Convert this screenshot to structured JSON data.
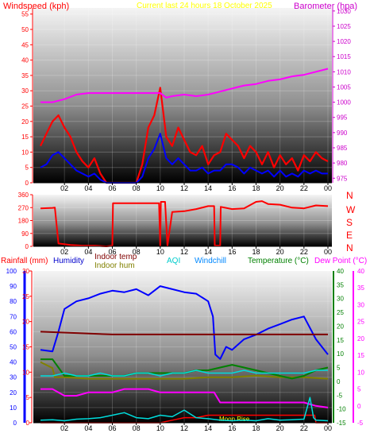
{
  "panel1": {
    "title": "Current last 24 hours 18 October 2025",
    "left_label": "Windspeed (kph)",
    "right_label": "Barometer (hpa)"
  },
  "panel2": {
    "direction_labels": [
      "N",
      "W",
      "S",
      "E",
      "N"
    ]
  },
  "panel3": {
    "labels": {
      "rainfall": "Rainfall (mm)",
      "humidity": "Humidity",
      "indoor_temp": "Indoor temp",
      "indoor_hum": "Indoor hum",
      "aqi": "AQI",
      "windchill": "Windchill",
      "temperature": "Temperature (°C)",
      "dewpoint": "Dew Point (°C)"
    },
    "moon_label": "Moon Rise"
  },
  "colors": {
    "wind_gust": "#ff0000",
    "wind_avg": "#0000ff",
    "barometer": "#ff00ff",
    "direction": "#ff0000",
    "rain_axis": "#ff0000",
    "humidity": "#0000ff",
    "indoor_temp": "#800000",
    "indoor_hum": "#808000",
    "aqi": "#00dddd",
    "windchill": "#00aaff",
    "temperature": "#008000",
    "dewpoint": "#ff00ff",
    "barometer_axis": "#cc00cc"
  },
  "chart_data": [
    {
      "type": "line",
      "id": "wind-baro",
      "title": "Current last 24 hours 18 October 2025",
      "x_ticks": [
        "02",
        "04",
        "06",
        "08",
        "10",
        "12",
        "14",
        "16",
        "18",
        "20",
        "22",
        "00"
      ],
      "y_left": {
        "label": "Windspeed (kph)",
        "ticks": [
          0,
          5,
          10,
          15,
          20,
          25,
          30,
          35,
          40,
          45,
          50,
          55
        ],
        "range": [
          0,
          57
        ]
      },
      "y_right": {
        "label": "Barometer (hpa)",
        "ticks": [
          975,
          980,
          985,
          990,
          995,
          1000,
          1005,
          1010,
          1015,
          1020,
          1025,
          1030
        ],
        "range": [
          973.5,
          1031
        ]
      },
      "series": [
        {
          "name": "Windspeed (kph)",
          "axis": "left",
          "style": "gust",
          "x": [
            0.0,
            0.5,
            1.0,
            1.5,
            2.0,
            2.5,
            3.0,
            3.5,
            4.0,
            4.5,
            5.0,
            5.5,
            6.0,
            6.5,
            7.0,
            7.5,
            8.0,
            8.5,
            9.0,
            9.5,
            10.0,
            10.5,
            11.0,
            11.5,
            12.0,
            12.5,
            13.0,
            13.5,
            14.0,
            14.5,
            15.0,
            15.5,
            16.0,
            16.5,
            17.0,
            17.5,
            18.0,
            18.5,
            19.0,
            19.5,
            20.0,
            20.5,
            21.0,
            21.5,
            22.0,
            22.5,
            23.0,
            23.5,
            24.0
          ],
          "values": [
            12,
            16,
            20,
            22,
            18,
            15,
            10,
            7,
            5,
            8,
            3,
            0,
            0,
            0,
            0,
            0,
            0,
            6,
            18,
            22,
            31,
            15,
            12,
            18,
            14,
            10,
            9,
            12,
            6,
            9,
            10,
            16,
            14,
            12,
            8,
            12,
            10,
            6,
            10,
            5,
            9,
            6,
            8,
            4,
            9,
            7,
            10,
            8,
            7
          ]
        },
        {
          "name": "Wind average",
          "axis": "left",
          "style": "avg",
          "x": [
            0.0,
            0.5,
            1.0,
            1.5,
            2.0,
            2.5,
            3.0,
            3.5,
            4.0,
            4.5,
            5.0,
            5.5,
            6.0,
            6.5,
            7.0,
            7.5,
            8.0,
            8.5,
            9.0,
            9.5,
            10.0,
            10.5,
            11.0,
            11.5,
            12.0,
            12.5,
            13.0,
            13.5,
            14.0,
            14.5,
            15.0,
            15.5,
            16.0,
            16.5,
            17.0,
            17.5,
            18.0,
            18.5,
            19.0,
            19.5,
            20.0,
            20.5,
            21.0,
            21.5,
            22.0,
            22.5,
            23.0,
            23.5,
            24.0
          ],
          "values": [
            5,
            6,
            9,
            10,
            8,
            6,
            4,
            3,
            2,
            3,
            1,
            0,
            0,
            0,
            0,
            0,
            0,
            2,
            8,
            11,
            16,
            8,
            6,
            8,
            6,
            4,
            4,
            5,
            3,
            4,
            4,
            6,
            6,
            5,
            3,
            5,
            4,
            3,
            4,
            2,
            4,
            2,
            3,
            2,
            4,
            3,
            4,
            3,
            3
          ]
        },
        {
          "name": "Barometer (hpa)",
          "axis": "right",
          "style": "baro",
          "x": [
            0,
            1,
            2,
            3,
            4,
            5,
            6,
            7,
            8,
            9,
            10,
            10.5,
            11,
            12,
            13,
            14,
            15,
            16,
            17,
            18,
            19,
            20,
            21,
            22,
            23,
            24
          ],
          "values": [
            1000,
            1000,
            1001,
            1002.5,
            1003,
            1003,
            1003,
            1003,
            1003,
            1003,
            1003,
            1001.5,
            1002,
            1002.5,
            1002,
            1002.5,
            1003.5,
            1004.5,
            1005.5,
            1006,
            1007,
            1007.5,
            1008.5,
            1009,
            1010,
            1011
          ]
        }
      ]
    },
    {
      "type": "line",
      "id": "wind-direction",
      "x_ticks": [
        "02",
        "04",
        "06",
        "08",
        "10",
        "12",
        "14",
        "16",
        "18",
        "20",
        "22",
        "00"
      ],
      "y_left": {
        "ticks": [
          0,
          90,
          180,
          270,
          360
        ],
        "range": [
          0,
          360
        ]
      },
      "series": [
        {
          "name": "Wind direction",
          "x": [
            0,
            1,
            1.2,
            1.5,
            2.5,
            3.5,
            4.5,
            5.5,
            6.0,
            6.05,
            7,
            8,
            9,
            9.9,
            10.0,
            10.05,
            10.4,
            10.6,
            11,
            12,
            13,
            14,
            14.5,
            14.55,
            15,
            15.05,
            16,
            17,
            18,
            18.5,
            19,
            20,
            21,
            22,
            23,
            24
          ],
          "values": [
            265,
            268,
            270,
            20,
            10,
            5,
            5,
            0,
            5,
            300,
            300,
            300,
            300,
            300,
            5,
            310,
            310,
            5,
            240,
            245,
            260,
            280,
            280,
            5,
            5,
            275,
            260,
            265,
            310,
            315,
            295,
            290,
            270,
            265,
            285,
            280
          ]
        }
      ]
    },
    {
      "type": "line",
      "id": "temp-hum-rain",
      "x_ticks": [
        "02",
        "04",
        "06",
        "08",
        "10",
        "12",
        "14",
        "16",
        "18",
        "20",
        "22",
        "00"
      ],
      "y_humidity": {
        "label": "Humidity",
        "ticks": [
          0,
          10,
          20,
          30,
          40,
          50,
          60,
          70,
          80,
          90,
          100
        ],
        "range": [
          0,
          100
        ]
      },
      "y_rain": {
        "label": "Rainfall (mm)",
        "ticks": [
          0,
          5,
          10,
          15,
          20,
          25,
          30
        ],
        "range": [
          0,
          30
        ]
      },
      "y_temp": {
        "label": "Temperature (°C)",
        "ticks": [
          -15,
          -10,
          -5,
          0,
          5,
          10,
          15,
          20,
          25,
          30,
          35,
          40
        ],
        "range": [
          -15,
          40
        ]
      },
      "y_dew": {
        "label": "Dew Point (°C)",
        "ticks": [
          -5,
          0,
          5,
          10,
          15,
          20,
          25,
          30,
          35,
          40
        ],
        "range": [
          -5,
          40
        ]
      },
      "series": [
        {
          "name": "Humidity",
          "axis": "humidity",
          "x": [
            0,
            1,
            1.5,
            2,
            3,
            4,
            5,
            6,
            7,
            8,
            9,
            10,
            11,
            12,
            13,
            14,
            14.4,
            14.6,
            15,
            15.5,
            16,
            17,
            18,
            19,
            20,
            21,
            22,
            23,
            24
          ],
          "values": [
            48,
            47,
            60,
            75,
            80,
            82,
            85,
            87,
            86,
            88,
            84,
            90,
            88,
            86,
            85,
            80,
            70,
            45,
            42,
            50,
            48,
            55,
            58,
            62,
            65,
            68,
            70,
            55,
            45
          ]
        },
        {
          "name": "Indoor temp",
          "axis": "temp",
          "x": [
            0,
            3,
            6,
            9,
            12,
            15,
            18,
            21,
            24
          ],
          "values": [
            18,
            17.5,
            17,
            17,
            17,
            17,
            17,
            17,
            17
          ]
        },
        {
          "name": "Indoor hum",
          "axis": "humidity",
          "x": [
            0,
            1,
            1.2,
            2,
            4,
            6,
            8,
            10,
            12,
            14,
            16,
            18,
            20,
            22,
            24
          ],
          "values": [
            40,
            36,
            30,
            30,
            29,
            29,
            29,
            29,
            29,
            30,
            30,
            31,
            30,
            30,
            29
          ]
        },
        {
          "name": "Temperature (°C)",
          "axis": "temp",
          "x": [
            0,
            1,
            2,
            3,
            4,
            5,
            6,
            7,
            8,
            9,
            10,
            11,
            12,
            13,
            14,
            15,
            16,
            17,
            18,
            19,
            20,
            21,
            22,
            23,
            24
          ],
          "values": [
            8,
            8,
            2,
            2,
            2,
            2,
            2,
            2,
            3,
            3,
            3,
            3,
            3,
            4,
            4,
            5,
            6,
            5,
            4,
            3,
            2,
            1,
            2,
            4,
            5
          ]
        },
        {
          "name": "AQI",
          "axis": "temp",
          "x": [
            0,
            1,
            2,
            3,
            4,
            5,
            6,
            7,
            8,
            9,
            10,
            11,
            12,
            13,
            14,
            15,
            16,
            17,
            18,
            19,
            20,
            21,
            22,
            23,
            24
          ],
          "values": [
            2,
            2,
            3,
            2,
            2,
            3,
            2,
            2,
            3,
            3,
            2,
            3,
            3,
            4,
            3,
            3,
            3,
            4,
            3,
            3,
            3,
            3,
            3,
            4,
            4
          ]
        },
        {
          "name": "Dew Point (°C)",
          "axis": "dew",
          "x": [
            0,
            1,
            2,
            3,
            4,
            5,
            6,
            7,
            8,
            9,
            10,
            11,
            12,
            13,
            14,
            14.5,
            15,
            16,
            17,
            18,
            19,
            20,
            21,
            22,
            23,
            24
          ],
          "values": [
            5,
            5,
            3,
            3,
            4,
            4,
            4,
            5,
            5,
            5,
            4,
            4,
            4,
            4,
            4,
            4,
            1,
            1,
            1,
            1,
            1,
            1,
            1,
            1,
            0,
            -0.5
          ]
        },
        {
          "name": "Rainfall (mm)",
          "axis": "rain",
          "x": [
            0,
            2,
            4,
            6,
            8,
            10,
            11,
            12,
            13,
            14,
            15,
            16,
            17,
            18,
            19,
            20,
            21,
            22,
            22.9,
            23,
            24
          ],
          "values": [
            0,
            0,
            0,
            0,
            0,
            0,
            0.5,
            1,
            1,
            1.5,
            1.5,
            1.5,
            1.5,
            1.5,
            1.5,
            1.5,
            1.5,
            1.5,
            1.5,
            0,
            0
          ]
        },
        {
          "name": "Windchill",
          "axis": "rain",
          "x": [
            0,
            1,
            2,
            3,
            4,
            5,
            6,
            7,
            8,
            9,
            10,
            11,
            12,
            13,
            14,
            15,
            16,
            17,
            18,
            19,
            20,
            21,
            22,
            22.5,
            22.8,
            23,
            24
          ],
          "values": [
            0.5,
            0.6,
            0.4,
            0.7,
            0.8,
            1,
            1.5,
            2,
            1,
            0.8,
            1.5,
            1.2,
            2.5,
            1,
            0.8,
            0.5,
            0.4,
            0.5,
            0.4,
            0.8,
            0.5,
            0.6,
            0.7,
            5,
            1,
            0.5,
            0.4
          ]
        }
      ]
    }
  ]
}
